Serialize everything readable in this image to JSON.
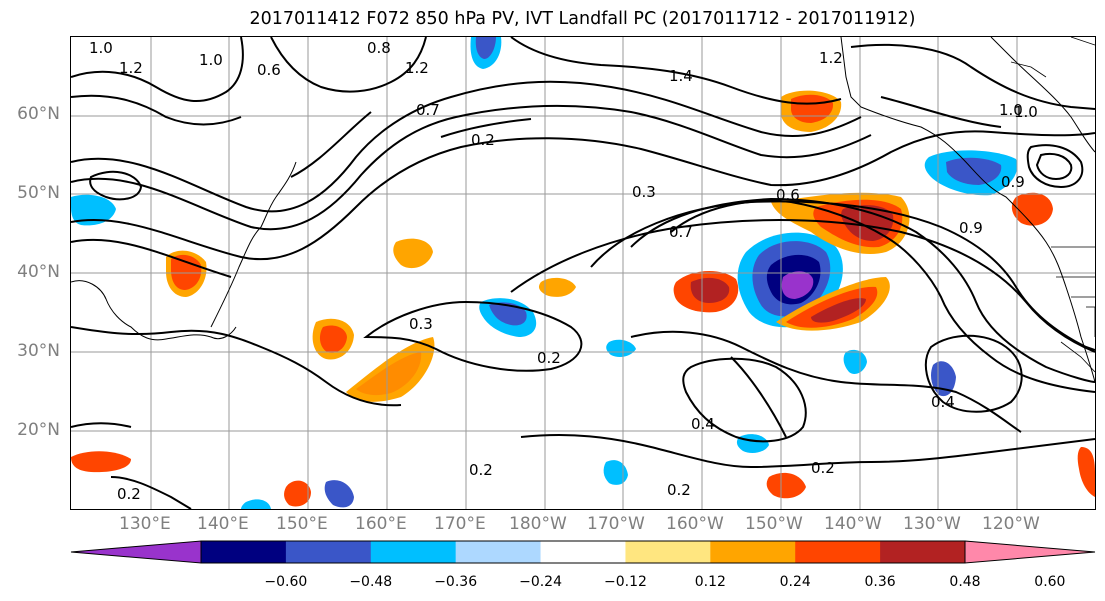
{
  "title": "2017011412 F072 850 hPa PV, IVT Landfall PC (2017011712 - 2017011912)",
  "lat_labels": [
    "60°N",
    "50°N",
    "40°N",
    "30°N",
    "20°N"
  ],
  "lon_labels": [
    "130°E",
    "140°E",
    "150°E",
    "160°E",
    "170°E",
    "180°W",
    "170°W",
    "160°W",
    "150°W",
    "140°W",
    "130°W",
    "120°W"
  ],
  "contour_labels": [
    "1.0",
    "1.2",
    "1.0",
    "0.6",
    "0.8",
    "1.2",
    "0.7",
    "0.2",
    "1.2",
    "1.4",
    "1.0",
    "0.3",
    "0.6",
    "0.7",
    "0.9",
    "0.3",
    "0.4",
    "0.2",
    "0.2",
    "0.2",
    "0.2",
    "0.4",
    "0.9",
    "1.0",
    "0.2"
  ],
  "colorbar": {
    "ticks": [
      "−0.60",
      "−0.48",
      "−0.36",
      "−0.24",
      "−0.12",
      "0.12",
      "0.24",
      "0.36",
      "0.48",
      "0.60"
    ],
    "colors": [
      "#9933cc",
      "#000080",
      "#3a56c8",
      "#00bfff",
      "#add8ff",
      "#ffffff",
      "#ffe680",
      "#ffa500",
      "#ff4500",
      "#b22222",
      "#ff88aa"
    ]
  }
}
